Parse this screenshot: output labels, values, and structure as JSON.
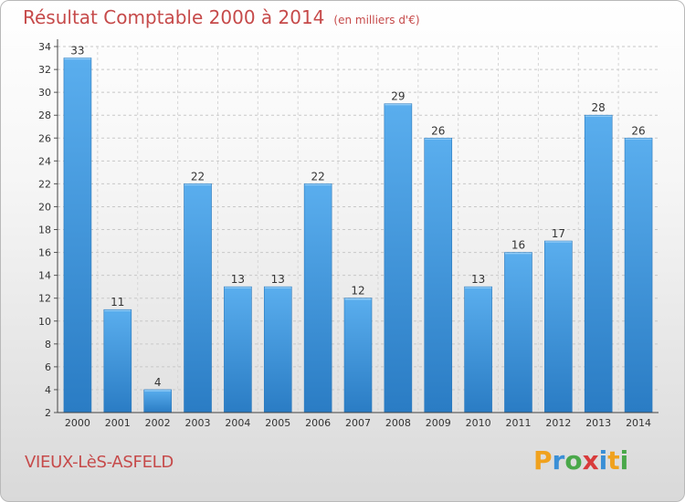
{
  "chart_data": {
    "type": "bar",
    "title": "Résultat Comptable 2000 à 2014",
    "subtitle": "(en milliers d'€)",
    "categories": [
      "2000",
      "2001",
      "2002",
      "2003",
      "2004",
      "2005",
      "2006",
      "2007",
      "2008",
      "2009",
      "2010",
      "2011",
      "2012",
      "2013",
      "2014"
    ],
    "values": [
      33,
      11,
      4,
      22,
      13,
      13,
      22,
      12,
      29,
      26,
      13,
      16,
      17,
      28,
      26
    ],
    "ylim": [
      2,
      34
    ],
    "yticks": [
      2,
      4,
      6,
      8,
      10,
      12,
      14,
      16,
      18,
      20,
      22,
      24,
      26,
      28,
      30,
      32,
      34
    ],
    "grid": true,
    "bar_color": "#3a8fd6"
  },
  "footer": {
    "commune": "VIEUX-LèS-ASFELD",
    "logo_letters": [
      "P",
      "r",
      "o",
      "x",
      "i",
      "t",
      "i"
    ],
    "logo_colors": [
      "#f0a21e",
      "#3a8fd6",
      "#4aa84a",
      "#d83b3b",
      "#3a8fd6",
      "#f0a21e",
      "#4aa84a"
    ]
  }
}
